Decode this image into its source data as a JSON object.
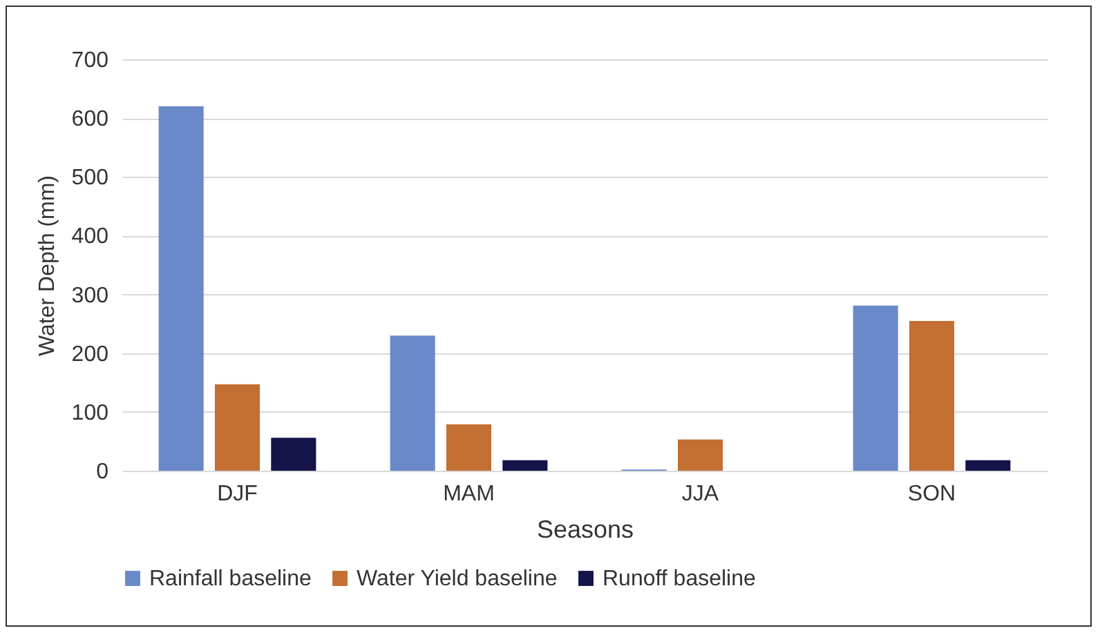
{
  "chart_data": {
    "type": "bar",
    "xlabel": "Seasons",
    "ylabel": "Water Depth (mm)",
    "categories": [
      "DJF",
      "MAM",
      "JJA",
      "SON"
    ],
    "series": [
      {
        "name": "Rainfall baseline",
        "color": "#6a89c9",
        "values": [
          620,
          230,
          2,
          281
        ]
      },
      {
        "name": "Water Yield baseline",
        "color": "#c36f31",
        "values": [
          147,
          79,
          53,
          255
        ]
      },
      {
        "name": "Runoff baseline",
        "color": "#14144a",
        "values": [
          56,
          18,
          0,
          18
        ]
      }
    ],
    "ylim": [
      0,
      700
    ],
    "yticks": [
      0,
      100,
      200,
      300,
      400,
      500,
      600,
      700
    ],
    "grid": "y",
    "legend": "bottom"
  }
}
